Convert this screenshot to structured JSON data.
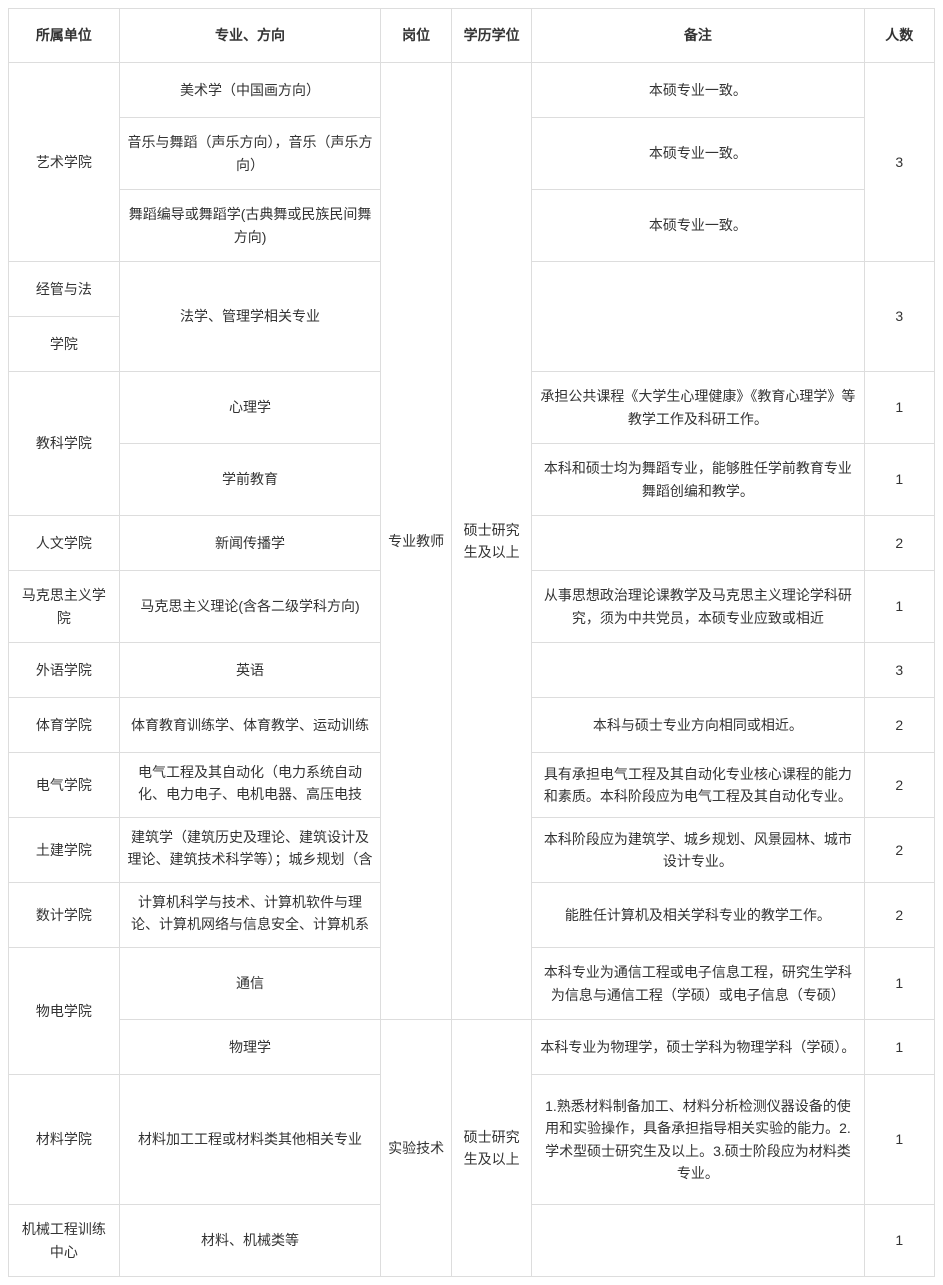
{
  "headers": {
    "unit": "所属单位",
    "major": "专业、方向",
    "position": "岗位",
    "degree": "学历学位",
    "remark": "备注",
    "count": "人数"
  },
  "positions": {
    "teacher": "专业教师",
    "lab": "实验技术"
  },
  "degrees": {
    "master": "硕士研究生及以上",
    "master2": "硕士研究生及以上"
  },
  "rows": {
    "art_unit": "艺术学院",
    "art1_major": "美术学（中国画方向）",
    "art1_remark": "本硕专业一致。",
    "art2_major": "音乐与舞蹈（声乐方向），音乐（声乐方向）",
    "art2_remark": "本硕专业一致。",
    "art3_major": "舞蹈编导或舞蹈学(古典舞或民族民间舞方向)",
    "art3_remark": "本硕专业一致。",
    "art_count": "3",
    "econ_unit1": "经管与法",
    "econ_unit2": "学院",
    "econ_major": "法学、管理学相关专业",
    "econ_remark": "",
    "econ_count": "3",
    "edu_unit": "教科学院",
    "edu1_major": "心理学",
    "edu1_remark": "承担公共课程《大学生心理健康》《教育心理学》等教学工作及科研工作。",
    "edu1_count": "1",
    "edu2_major": "学前教育",
    "edu2_remark": "本科和硕士均为舞蹈专业，能够胜任学前教育专业舞蹈创编和教学。",
    "edu2_count": "1",
    "hum_unit": "人文学院",
    "hum_major": "新闻传播学",
    "hum_remark": "",
    "hum_count": "2",
    "marx_unit": "马克思主义学院",
    "marx_major": "马克思主义理论(含各二级学科方向)",
    "marx_remark": "从事思想政治理论课教学及马克思主义理论学科研究，须为中共党员，本硕专业应致或相近",
    "marx_count": "1",
    "for_unit": "外语学院",
    "for_major": "英语",
    "for_remark": "",
    "for_count": "3",
    "pe_unit": "体育学院",
    "pe_major": "体育教育训练学、体育教学、运动训练",
    "pe_remark": "本科与硕士专业方向相同或相近。",
    "pe_count": "2",
    "ee_unit": "电气学院",
    "ee_major": "电气工程及其自动化（电力系统自动化、电力电子、电机电器、高压电技术、电工理论）",
    "ee_remark": "具有承担电气工程及其自动化专业核心课程的能力和素质。本科阶段应为电气工程及其自动化专业。",
    "ee_count": "2",
    "civil_unit": "土建学院",
    "civil_major": "建筑学（建筑历史及理论、建筑设计及理论、建筑技术科学等）；城乡规划（含城市设计、市政工程）",
    "civil_remark": "本科阶段应为建筑学、城乡规划、风景园林、城市设计专业。",
    "civil_count": "2",
    "cs_unit": "数计学院",
    "cs_major": "计算机科学与技术、计算机软件与理论、计算机网络与信息安全、计算机系统结构、计算机应用技术",
    "cs_remark": "能胜任计算机及相关学科专业的教学工作。",
    "cs_count": "2",
    "phys_unit": "物电学院",
    "phys1_major": "通信",
    "phys1_remark": "本科专业为通信工程或电子信息工程，研究生学科为信息与通信工程（学硕）或电子信息（专硕）",
    "phys1_count": "1",
    "phys2_major": "物理学",
    "phys2_remark": "本科专业为物理学，硕士学科为物理学科（学硕）。",
    "phys2_count": "1",
    "mat_unit": "材料学院",
    "mat_major": "材料加工工程或材料类其他相关专业",
    "mat_remark": "1.熟悉材料制备加工、材料分析检测仪器设备的使用和实验操作，具备承担指导相关实验的能力。2.学术型硕士研究生及以上。3.硕士阶段应为材料类专业。",
    "mat_count": "1",
    "mech_unit": "机械工程训练中心",
    "mech_major": "材料、机械类等",
    "mech_remark": "",
    "mech_count": "1"
  }
}
